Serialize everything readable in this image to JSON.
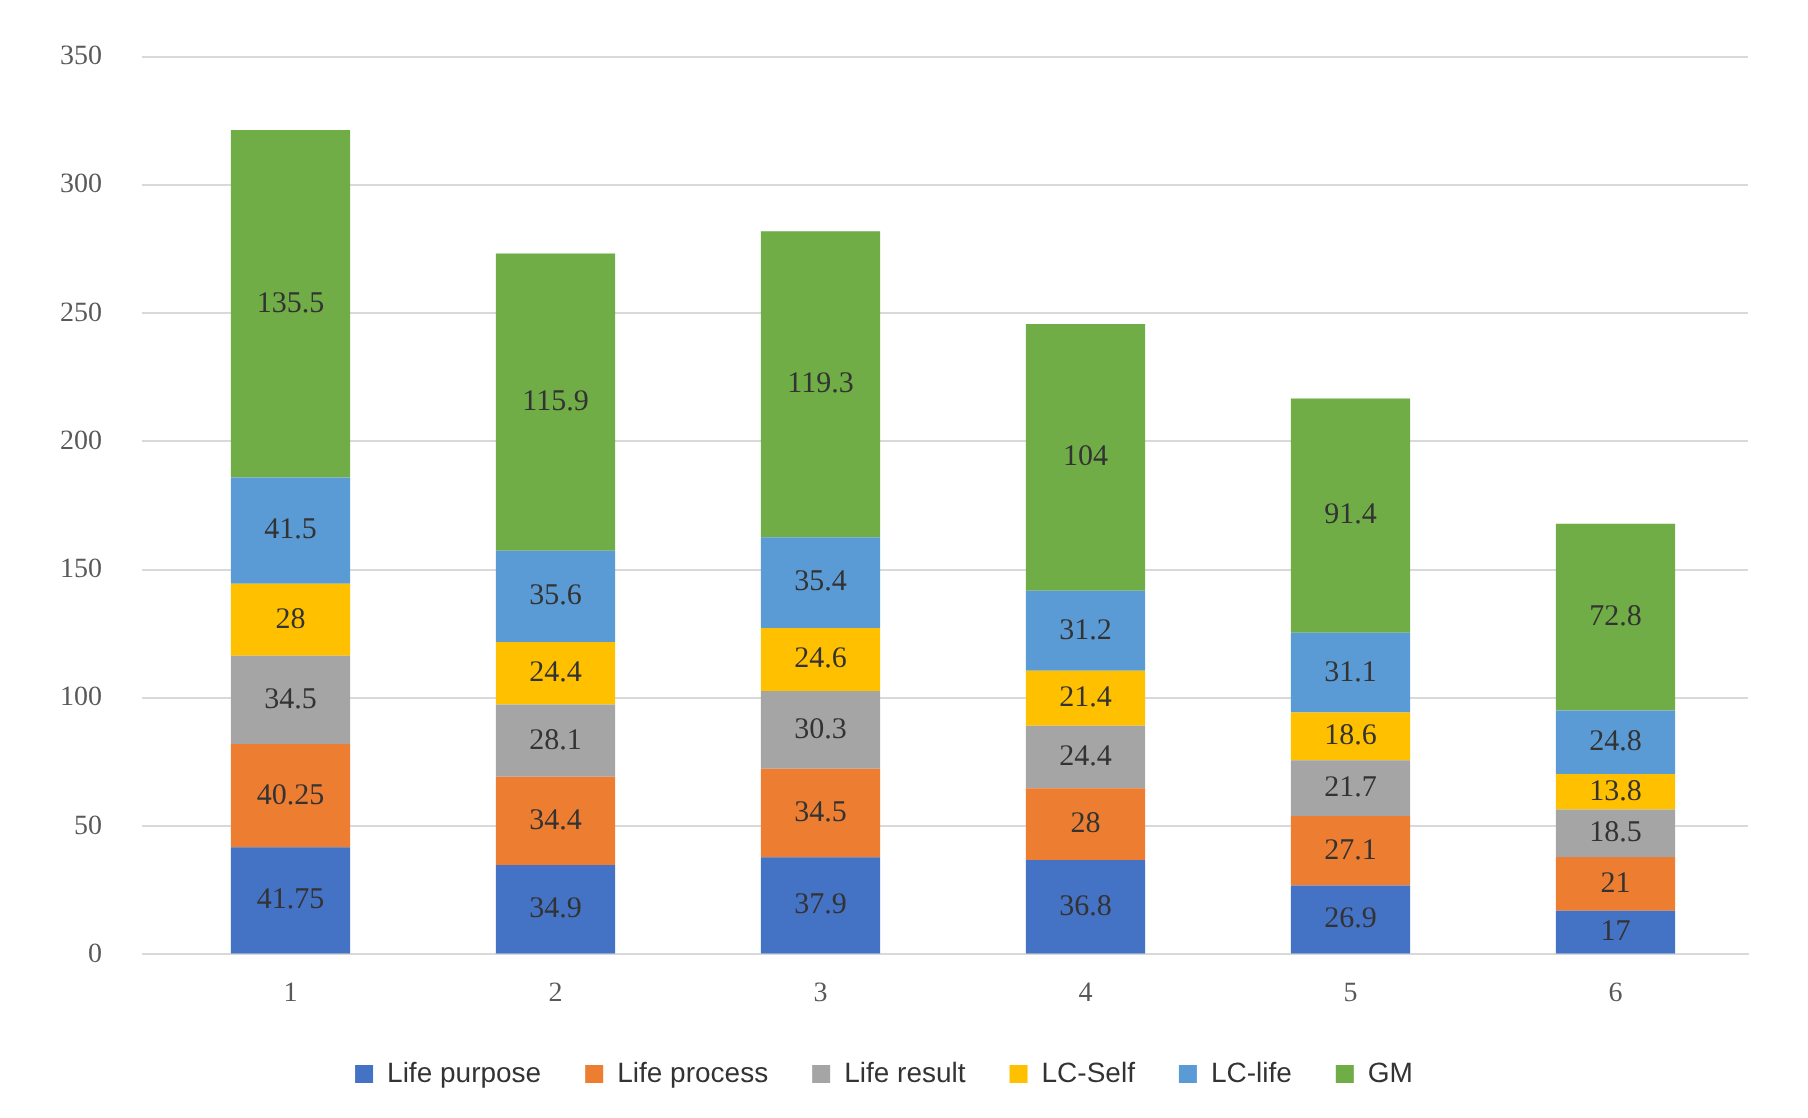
{
  "chart_data": {
    "type": "bar",
    "stacked": true,
    "categories": [
      "1",
      "2",
      "3",
      "4",
      "5",
      "6"
    ],
    "series": [
      {
        "name": "Life purpose",
        "color": "#4472c4",
        "values": [
          41.75,
          34.9,
          37.9,
          36.8,
          26.9,
          17
        ]
      },
      {
        "name": "Life process",
        "color": "#ed7d31",
        "values": [
          40.25,
          34.4,
          34.5,
          28,
          27.1,
          21
        ]
      },
      {
        "name": "Life result",
        "color": "#a5a5a5",
        "values": [
          34.5,
          28.1,
          30.3,
          24.4,
          21.7,
          18.5
        ]
      },
      {
        "name": "LC-Self",
        "color": "#ffc000",
        "values": [
          28,
          24.4,
          24.6,
          21.4,
          18.6,
          13.8
        ]
      },
      {
        "name": "LC-life",
        "color": "#5b9bd5",
        "values": [
          41.5,
          35.6,
          35.4,
          31.2,
          31.1,
          24.8
        ]
      },
      {
        "name": "GM",
        "color": "#70ad47",
        "values": [
          135.5,
          115.9,
          119.3,
          104,
          91.4,
          72.8
        ]
      }
    ],
    "ylim": [
      0,
      350
    ],
    "yticks": [
      0,
      50,
      100,
      150,
      200,
      250,
      300,
      350
    ],
    "grid": "y",
    "legend": "bottom",
    "data_labels": true
  }
}
